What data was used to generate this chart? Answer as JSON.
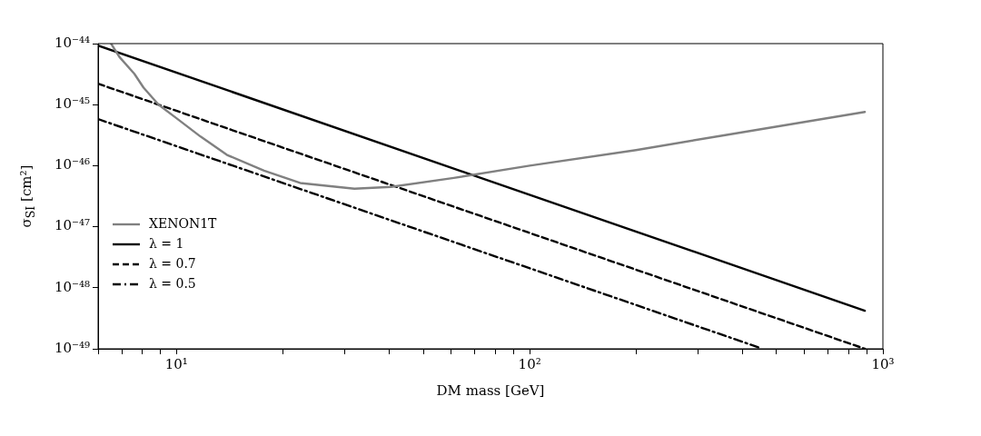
{
  "chart_data": {
    "type": "line",
    "xlabel": "DM mass [GeV]",
    "ylabel": "σ$_{SI}$ [cm²]",
    "log": "xy",
    "grid": false,
    "legend": "left",
    "marker": "none",
    "xlim": [
      6,
      1000
    ],
    "ylim": [
      1e-49,
      1e-44
    ],
    "xticks": [
      {
        "value": 10,
        "label": "10¹"
      },
      {
        "value": 100,
        "label": "10²"
      },
      {
        "value": 1000,
        "label": "10³"
      },
      {
        "value": 6,
        "label": null
      },
      {
        "value": 7,
        "label": null
      },
      {
        "value": 8,
        "label": null
      },
      {
        "value": 9,
        "label": null
      },
      {
        "value": 20,
        "label": null
      },
      {
        "value": 30,
        "label": null
      },
      {
        "value": 40,
        "label": null
      },
      {
        "value": 50,
        "label": null
      },
      {
        "value": 60,
        "label": null
      },
      {
        "value": 70,
        "label": null
      },
      {
        "value": 80,
        "label": null
      },
      {
        "value": 90,
        "label": null
      },
      {
        "value": 200,
        "label": null
      },
      {
        "value": 300,
        "label": null
      },
      {
        "value": 400,
        "label": null
      },
      {
        "value": 500,
        "label": null
      },
      {
        "value": 600,
        "label": null
      },
      {
        "value": 700,
        "label": null
      },
      {
        "value": 800,
        "label": null
      },
      {
        "value": 900,
        "label": null
      }
    ],
    "yticks": [
      {
        "value": 1e-49,
        "label": "10⁻⁴⁹"
      },
      {
        "value": 1e-48,
        "label": "10⁻⁴⁸"
      },
      {
        "value": 1e-47,
        "label": "10⁻⁴⁷"
      },
      {
        "value": 1e-46,
        "label": "10⁻⁴⁶"
      },
      {
        "value": 1e-45,
        "label": "10⁻⁴⁵"
      },
      {
        "value": 1e-44,
        "label": "10⁻⁴⁴"
      }
    ],
    "series": [
      {
        "name": "XENON1T",
        "color": "#808080",
        "line_style": "solid",
        "x": [
          6.53,
          6.9,
          7.6,
          8.07,
          8.9,
          10,
          11.7,
          13.9,
          17.7,
          22.4,
          31.9,
          40.5,
          61,
          100,
          200,
          361,
          889
        ],
        "values": [
          1e-44,
          6e-45,
          3.2e-45,
          1.9e-45,
          1e-45,
          6e-46,
          3e-46,
          1.5e-46,
          8.3e-47,
          5.2e-47,
          4.2e-47,
          4.5e-47,
          6.3e-47,
          1e-46,
          1.8e-46,
          3.2e-46,
          7.6e-46
        ]
      },
      {
        "name": "λ = 1",
        "color": "#000000",
        "line_style": "solid",
        "x": [
          6,
          889
        ],
        "values": [
          9.3e-45,
          4.2e-49
        ]
      },
      {
        "name": "λ = 0.7",
        "color": "#000000",
        "line_style": "dashed",
        "x": [
          6,
          889
        ],
        "values": [
          2.2e-45,
          1e-49
        ]
      },
      {
        "name": "λ = 0.5",
        "color": "#000000",
        "line_style": "dashdot",
        "x": [
          6,
          450
        ],
        "values": [
          5.8e-46,
          1.03e-49
        ]
      }
    ]
  }
}
